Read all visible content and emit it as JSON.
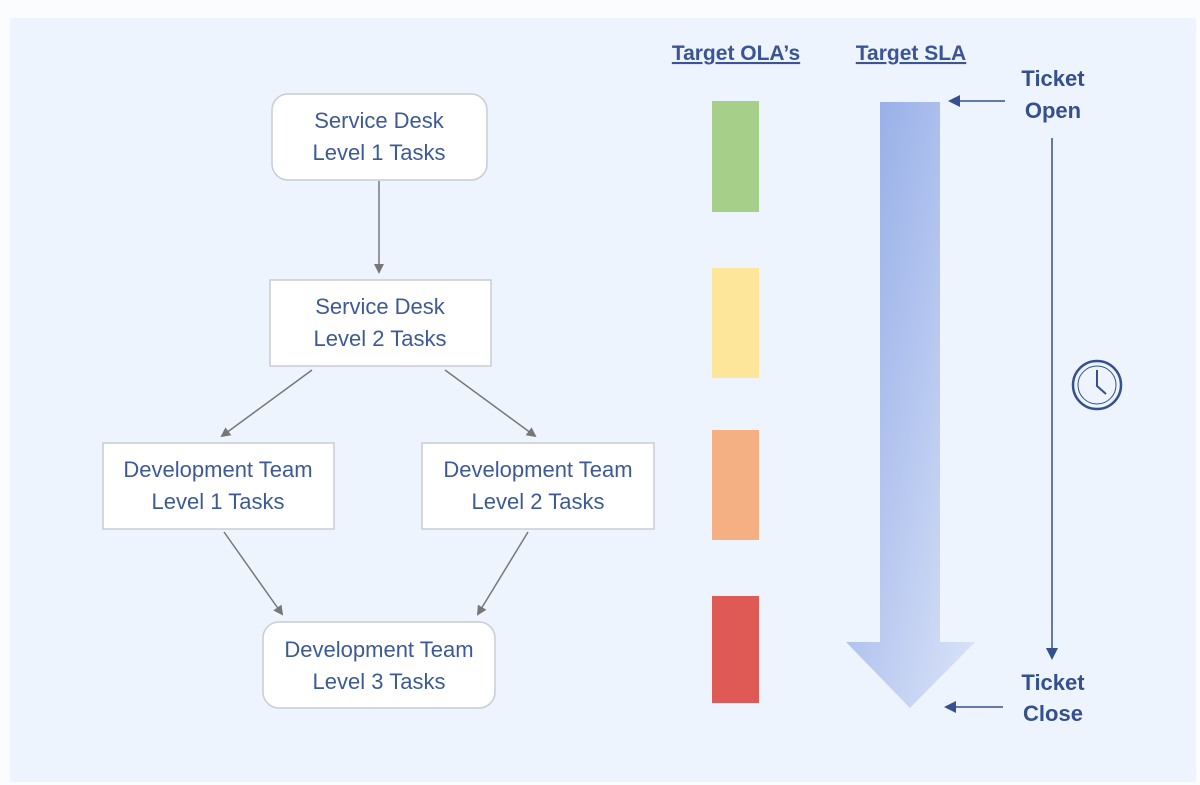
{
  "boxes": [
    {
      "line1": "Service Desk",
      "line2": "Level 1 Tasks"
    },
    {
      "line1": "Service Desk",
      "line2": "Level 2 Tasks"
    },
    {
      "line1": "Development Team",
      "line2": "Level 1 Tasks"
    },
    {
      "line1": "Development Team",
      "line2": "Level 2 Tasks"
    },
    {
      "line1": "Development Team",
      "line2": "Level 3 Tasks"
    }
  ],
  "headers": {
    "ola": "Target OLA’s",
    "sla": "Target SLA"
  },
  "ola_colors": [
    "#a6d08a",
    "#fde59a",
    "#f4b083",
    "#e05a55"
  ],
  "ticket_open": {
    "line1": "Ticket",
    "line2": "Open"
  },
  "ticket_close": {
    "line1": "Ticket",
    "line2": "Close"
  },
  "icons": {
    "timer": "clock-icon"
  }
}
